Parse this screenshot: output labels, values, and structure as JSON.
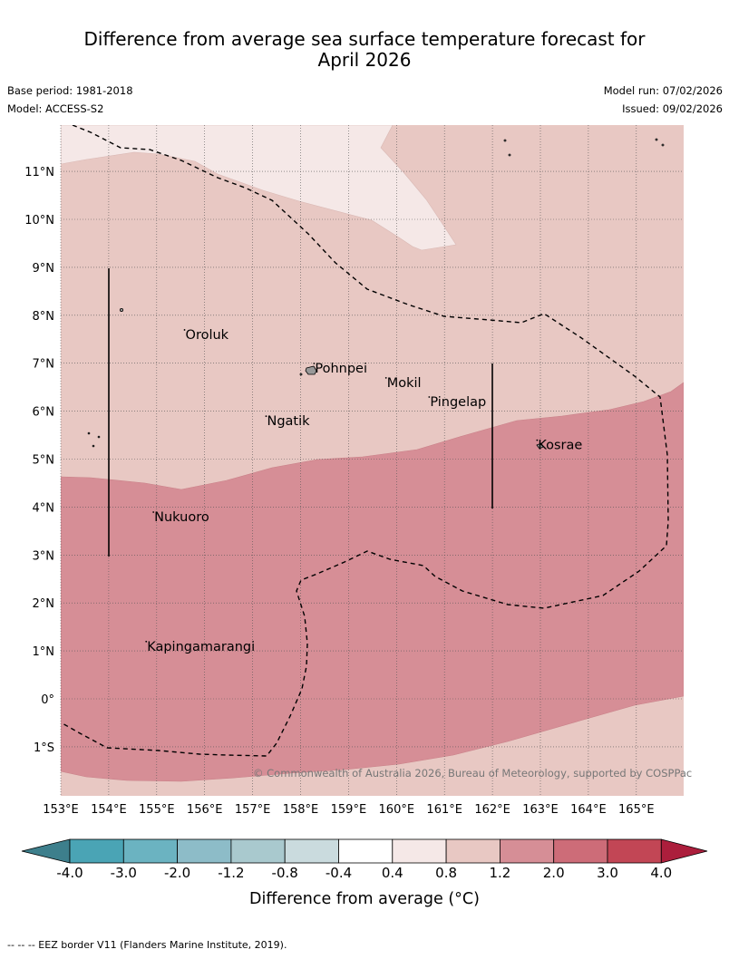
{
  "title_line1": "Difference from average sea surface temperature forecast for",
  "title_line2": "April 2026",
  "base_period": "Base period: 1981-2018",
  "model": "Model: ACCESS-S2",
  "model_run": "Model run: 07/02/2026",
  "issued": "Issued: 09/02/2026",
  "copyright": "© Commonwealth of Australia 2026, Bureau of Meteorology, supported by COSPPac",
  "lat_labels": [
    "11°N",
    "10°N",
    "9°N",
    "8°N",
    "7°N",
    "6°N",
    "5°N",
    "4°N",
    "3°N",
    "2°N",
    "1°N",
    "0°",
    "1°S"
  ],
  "lon_labels": [
    "153°E",
    "154°E",
    "155°E",
    "156°E",
    "157°E",
    "158°E",
    "159°E",
    "160°E",
    "161°E",
    "162°E",
    "163°E",
    "164°E",
    "165°E"
  ],
  "places": [
    {
      "name": "Oroluk",
      "lat": 7.6,
      "lon": 155.6
    },
    {
      "name": "Pohnpei",
      "lat": 6.9,
      "lon": 158.3
    },
    {
      "name": "Mokil",
      "lat": 6.6,
      "lon": 159.8
    },
    {
      "name": "Pingelap",
      "lat": 6.2,
      "lon": 160.7
    },
    {
      "name": "Ngatik",
      "lat": 5.8,
      "lon": 157.3
    },
    {
      "name": "Kosrae",
      "lat": 5.3,
      "lon": 162.95
    },
    {
      "name": "Nukuoro",
      "lat": 3.8,
      "lon": 154.95
    },
    {
      "name": "Kapingamarangi",
      "lat": 1.1,
      "lon": 154.8
    }
  ],
  "colorbar": {
    "tick_labels": [
      "-4.0",
      "-3.0",
      "-2.0",
      "-1.2",
      "-0.8",
      "-0.4",
      "0.4",
      "0.8",
      "1.2",
      "2.0",
      "3.0",
      "4.0"
    ],
    "colors": [
      "#3d7f8c",
      "#4aa4b5",
      "#6bb3c1",
      "#8dbcc8",
      "#a9c9ce",
      "#cadbde",
      "#ffffff",
      "#f5e8e7",
      "#e8c8c3",
      "#d68e96",
      "#cd6c78",
      "#c24655",
      "#ac1e3c"
    ],
    "label": "Difference from average (°C)"
  },
  "legend_note": "--  --  -- EEZ border V11 (Flanders Marine Institute, 2019).",
  "colors": {
    "band_0_4_0_8": "#f5e8e7",
    "band_0_8_1_2": "#e8c8c3",
    "band_1_2_2_0": "#d68e96"
  }
}
